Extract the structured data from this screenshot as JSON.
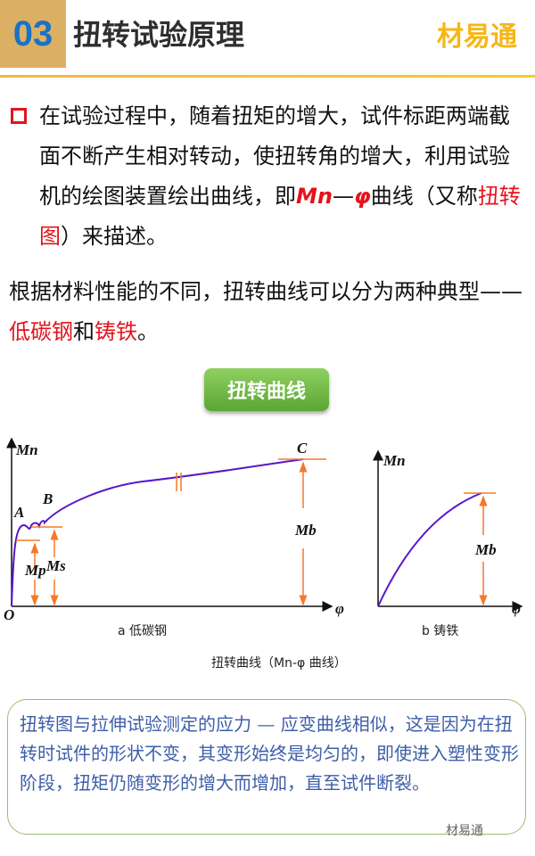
{
  "header": {
    "number": "03",
    "title": "扭转试验原理",
    "brand": "材易通"
  },
  "para1": {
    "text_a": "在试验过程中，随着扭矩的增大，试件标距两端截面不断产生相对转动，使扭转角的增大，利用试验机的绘图装置绘出曲线，即",
    "mn": "Mn",
    "dash": "—",
    "phi": "φ",
    "text_b": "曲线（又称",
    "hl": "扭转图",
    "text_c": "）来描述。"
  },
  "para2": {
    "text_a": "根据材料性能的不同，扭转曲线可以分为两种典型——",
    "hl1": "低碳钢",
    "and": "和",
    "hl2": "铸铁",
    "end": "。"
  },
  "button": {
    "label": "扭转曲线"
  },
  "diagram": {
    "left": {
      "y_label": "Mn",
      "x_label": "φ",
      "origin": "O",
      "points": [
        "A",
        "B",
        "C"
      ],
      "mp": "Mp",
      "ms": "Ms",
      "mb": "Mb",
      "caption": "a 低碳钢"
    },
    "right": {
      "y_label": "Mn",
      "x_label": "φ",
      "mb": "Mb",
      "caption": "b 铸铁"
    },
    "caption": "扭转曲线（Mn-φ 曲线）",
    "curve_color": "#5a16c8",
    "marker_color": "#f5782a"
  },
  "note": {
    "text": "扭转图与拉伸试验测定的应力 — 应变曲线相似，这是因为在扭转时试件的形状不变，其变形始终是均匀的，即使进入塑性变形阶段，扭矩仍随变形的增大而增加，直至试件断裂。",
    "watermark": "材易通"
  }
}
